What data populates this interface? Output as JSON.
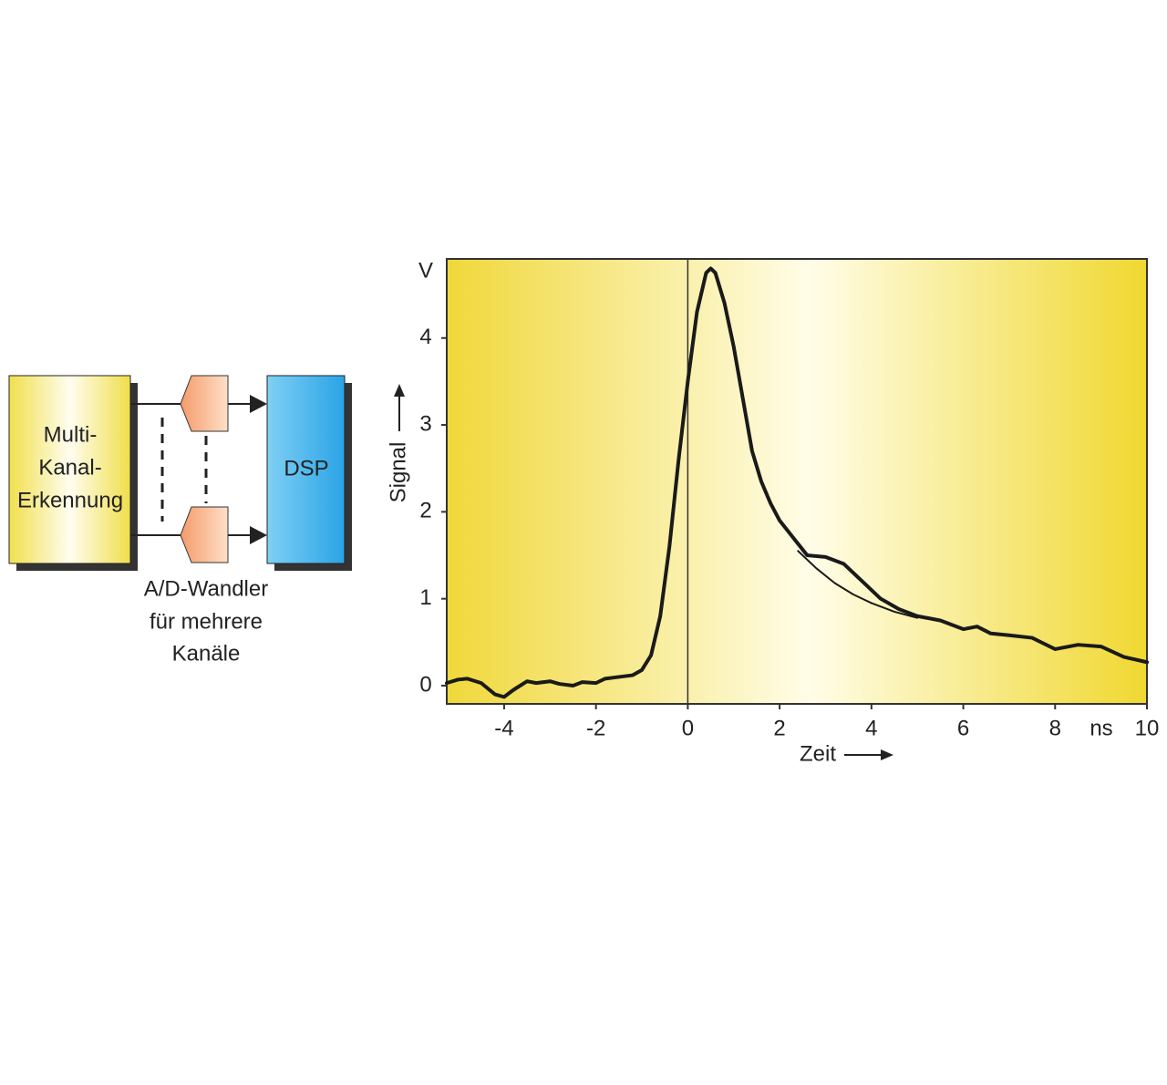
{
  "diagram": {
    "detector": [
      "Multi-",
      "Kanal-",
      "Erkennung"
    ],
    "processor": "DSP",
    "converter": [
      "A/D-Wandler",
      "für mehrere",
      "Kanäle"
    ]
  },
  "chart_data": {
    "type": "line",
    "x_label": "Zeit",
    "y_label": "Signal",
    "x_unit": "ns",
    "y_unit": "V",
    "xlim": [
      -5.25,
      10
    ],
    "ylim": [
      -0.21,
      4.91
    ],
    "xticks": [
      -4,
      -2,
      0,
      2,
      4,
      6,
      8,
      10
    ],
    "yticks": [
      0,
      1,
      2,
      3,
      4
    ],
    "vline": 0,
    "series": [
      {
        "color": "#1a1a1a",
        "line_width": 4,
        "x": [
          -5.25,
          -5,
          -4.8,
          -4.5,
          -4.2,
          -4,
          -3.8,
          -3.5,
          -3.3,
          -3,
          -2.8,
          -2.5,
          -2.3,
          -2,
          -1.8,
          -1.5,
          -1.2,
          -1,
          -0.8,
          -0.6,
          -0.4,
          -0.2,
          0,
          0.2,
          0.4,
          0.5,
          0.6,
          0.8,
          1,
          1.2,
          1.4,
          1.6,
          1.8,
          2,
          2.3,
          2.6,
          3,
          3.4,
          3.8,
          4.2,
          4.6,
          5,
          5.5,
          6,
          6.3,
          6.6,
          7,
          7.5,
          8,
          8.5,
          9,
          9.5,
          10
        ],
        "values": [
          0.03,
          0.07,
          0.08,
          0.03,
          -0.1,
          -0.13,
          -0.05,
          0.05,
          0.03,
          0.05,
          0.02,
          0.0,
          0.04,
          0.03,
          0.08,
          0.1,
          0.12,
          0.18,
          0.35,
          0.8,
          1.6,
          2.6,
          3.5,
          4.3,
          4.75,
          4.8,
          4.75,
          4.4,
          3.9,
          3.3,
          2.7,
          2.35,
          2.1,
          1.9,
          1.7,
          1.5,
          1.48,
          1.4,
          1.2,
          1.0,
          0.88,
          0.8,
          0.75,
          0.65,
          0.68,
          0.6,
          0.58,
          0.55,
          0.42,
          0.47,
          0.45,
          0.33,
          0.27
        ]
      },
      {
        "color": "#1a1a1a",
        "line_width": 2,
        "x": [
          2.4,
          2.8,
          3.2,
          3.6,
          4,
          4.5,
          5
        ],
        "values": [
          1.55,
          1.35,
          1.18,
          1.05,
          0.95,
          0.85,
          0.78
        ]
      }
    ]
  }
}
